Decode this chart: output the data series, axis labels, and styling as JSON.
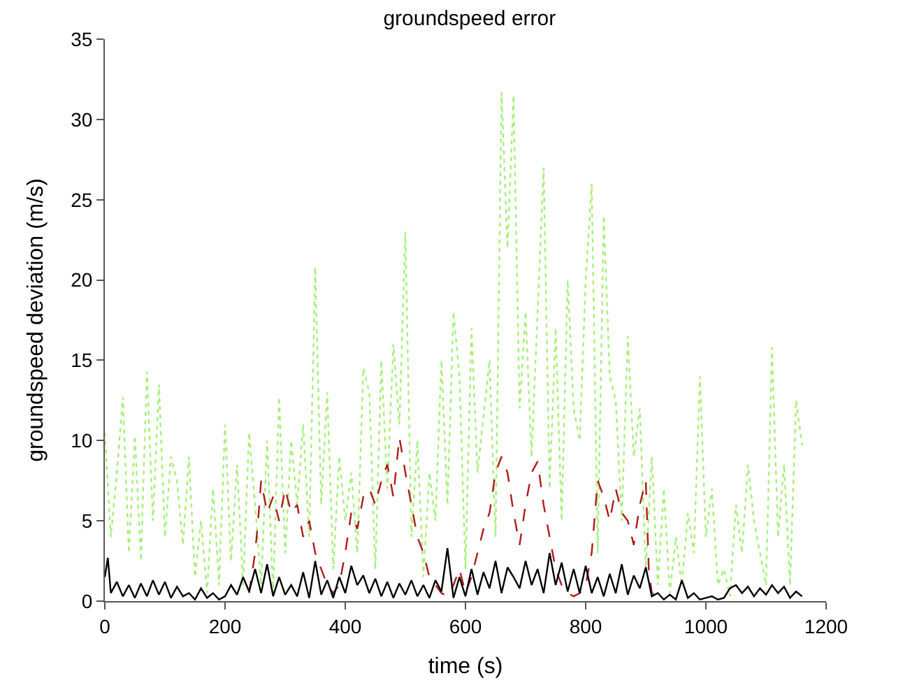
{
  "chart_data": {
    "type": "line",
    "title": "groundspeed error",
    "xlabel": "time (s)",
    "ylabel": "groundspeed deviation (m/s)",
    "xlim": [
      0,
      1200
    ],
    "xticks": [
      0,
      200,
      400,
      600,
      800,
      1000,
      1200
    ],
    "ylim": [
      0,
      35
    ],
    "yticks": [
      0,
      5,
      10,
      15,
      20,
      25,
      30,
      35
    ],
    "marker": "none",
    "series": [
      {
        "color": "#a6f07a",
        "line_style": "dotted",
        "x": [
          0,
          10,
          20,
          30,
          40,
          50,
          60,
          70,
          80,
          90,
          100,
          110,
          120,
          130,
          140,
          150,
          160,
          170,
          180,
          190,
          200,
          210,
          220,
          230,
          240,
          250,
          260,
          270,
          280,
          290,
          300,
          310,
          320,
          330,
          340,
          350,
          360,
          370,
          380,
          390,
          400,
          410,
          420,
          430,
          440,
          450,
          460,
          470,
          480,
          490,
          500,
          510,
          520,
          530,
          540,
          550,
          560,
          570,
          580,
          590,
          600,
          610,
          620,
          640,
          650,
          660,
          670,
          680,
          690,
          700,
          710,
          730,
          740,
          750,
          760,
          770,
          780,
          790,
          800,
          810,
          820,
          830,
          840,
          850,
          860,
          870,
          880,
          890,
          900,
          910,
          920,
          930,
          940,
          950,
          960,
          970,
          980,
          990,
          1000,
          1010,
          1020,
          1030,
          1040,
          1050,
          1060,
          1070,
          1080,
          1090,
          1100,
          1110,
          1120,
          1130,
          1140,
          1150,
          1160
        ],
        "values": [
          10.5,
          4,
          8,
          12.7,
          3,
          10.3,
          2.5,
          14.3,
          5,
          13.5,
          4,
          9,
          7.5,
          3.5,
          9,
          1.5,
          5,
          0.5,
          7,
          1,
          11,
          2.5,
          8.5,
          1,
          10.5,
          6,
          1,
          10,
          0.5,
          12.7,
          3,
          10,
          6,
          11,
          4,
          20.8,
          6,
          13,
          2,
          9,
          5,
          8,
          3,
          14.5,
          13,
          2,
          15,
          7,
          16,
          11,
          23,
          4,
          10,
          1.5,
          8,
          5,
          15,
          6,
          18,
          14,
          2,
          17,
          8,
          15,
          4,
          31.7,
          22,
          31.5,
          12,
          18,
          9,
          27,
          7,
          17,
          5,
          20,
          12,
          10,
          20,
          26,
          3,
          24,
          14,
          12.5,
          5,
          16.5,
          9,
          12,
          2,
          9,
          1,
          7,
          0.5,
          4,
          1,
          5.5,
          3,
          14,
          4,
          7,
          1,
          2,
          0.3,
          6,
          3,
          8.5,
          5,
          3,
          1,
          15.8,
          4,
          8.5,
          1,
          12.5,
          9.7
        ]
      },
      {
        "color": "#b01a1a",
        "line_style": "dashed",
        "x": [
          240,
          250,
          255,
          260,
          270,
          280,
          290,
          300,
          310,
          320,
          330,
          340,
          350,
          360,
          370,
          380,
          390,
          400,
          410,
          420,
          430,
          440,
          450,
          460,
          470,
          480,
          490,
          500,
          510,
          520,
          530,
          540,
          550,
          560,
          570,
          580,
          590,
          600,
          610,
          620,
          630,
          640,
          650,
          660,
          670,
          680,
          690,
          700,
          710,
          720,
          730,
          740,
          750,
          760,
          770,
          780,
          790,
          800,
          810,
          820,
          830,
          840,
          850,
          860,
          870,
          880,
          890,
          900,
          905,
          910,
          920
        ],
        "values": [
          0.5,
          3,
          5,
          7.5,
          5.5,
          6.5,
          5,
          7,
          5.5,
          6,
          4,
          5,
          3,
          2,
          1,
          0.5,
          1,
          3,
          5.5,
          4.5,
          6.5,
          7,
          6,
          7.5,
          8.5,
          6.5,
          10.2,
          8,
          6,
          4,
          3,
          1.5,
          1,
          0.5,
          0.3,
          1,
          2,
          0.5,
          1.5,
          3,
          4.5,
          5.5,
          8,
          9,
          8,
          5.5,
          3.5,
          6,
          8,
          8.7,
          6,
          4,
          2,
          1,
          0.5,
          0.3,
          0.5,
          1,
          3,
          7.5,
          6.5,
          5,
          7,
          5.5,
          5,
          3.5,
          6,
          7.5,
          2,
          0.5,
          0.3
        ]
      },
      {
        "color": "#000000",
        "line_style": "solid",
        "x": [
          0,
          5,
          10,
          20,
          30,
          40,
          50,
          60,
          70,
          80,
          90,
          100,
          110,
          120,
          130,
          140,
          150,
          160,
          170,
          180,
          190,
          200,
          210,
          220,
          230,
          240,
          250,
          260,
          270,
          280,
          290,
          300,
          310,
          320,
          330,
          340,
          350,
          360,
          370,
          380,
          390,
          400,
          410,
          420,
          430,
          440,
          450,
          460,
          470,
          480,
          490,
          500,
          510,
          520,
          530,
          540,
          550,
          560,
          570,
          580,
          590,
          600,
          610,
          620,
          630,
          640,
          650,
          660,
          670,
          680,
          690,
          700,
          710,
          720,
          730,
          740,
          750,
          760,
          770,
          780,
          790,
          800,
          810,
          820,
          830,
          840,
          850,
          860,
          870,
          880,
          890,
          900,
          910,
          920,
          930,
          940,
          950,
          960,
          970,
          980,
          990,
          1000,
          1010,
          1020,
          1030,
          1040,
          1050,
          1060,
          1070,
          1080,
          1090,
          1100,
          1110,
          1120,
          1130,
          1140,
          1150,
          1160
        ],
        "values": [
          1.5,
          2.7,
          0.5,
          1.2,
          0.3,
          1,
          0.2,
          1.1,
          0.3,
          1.3,
          0.4,
          1.2,
          0.2,
          0.9,
          0.3,
          0.5,
          0.1,
          0.8,
          0.2,
          0.5,
          0.1,
          0.3,
          1,
          0.4,
          1.5,
          0.6,
          2,
          0.5,
          2.3,
          0.3,
          1.5,
          0.4,
          1,
          0.3,
          1.8,
          0.2,
          2.5,
          0.4,
          1.3,
          0.2,
          1.5,
          0.5,
          2.2,
          1,
          1.6,
          0.5,
          1.4,
          0.3,
          1.2,
          0.2,
          1.1,
          0.4,
          1.3,
          0.3,
          1,
          0.2,
          1.3,
          0.6,
          3.3,
          0.2,
          1.5,
          0.3,
          2,
          0.4,
          1.8,
          0.8,
          2.5,
          0.5,
          2.1,
          1.5,
          0.8,
          2.5,
          1,
          2,
          0.5,
          3,
          1,
          2.4,
          0.6,
          2,
          0.5,
          2.2,
          0.5,
          1.5,
          0.3,
          1.7,
          0.5,
          2.3,
          0.4,
          1.6,
          0.8,
          2.1,
          0.3,
          0.5,
          0.1,
          0.4,
          0.1,
          1.3,
          0.2,
          0.5,
          0.1,
          0.2,
          0.3,
          0.1,
          0.2,
          0.8,
          1,
          0.5,
          0.9,
          0.3,
          0.8,
          0.4,
          1,
          0.5,
          0.9,
          0.2,
          0.6,
          0.3
        ]
      }
    ]
  }
}
